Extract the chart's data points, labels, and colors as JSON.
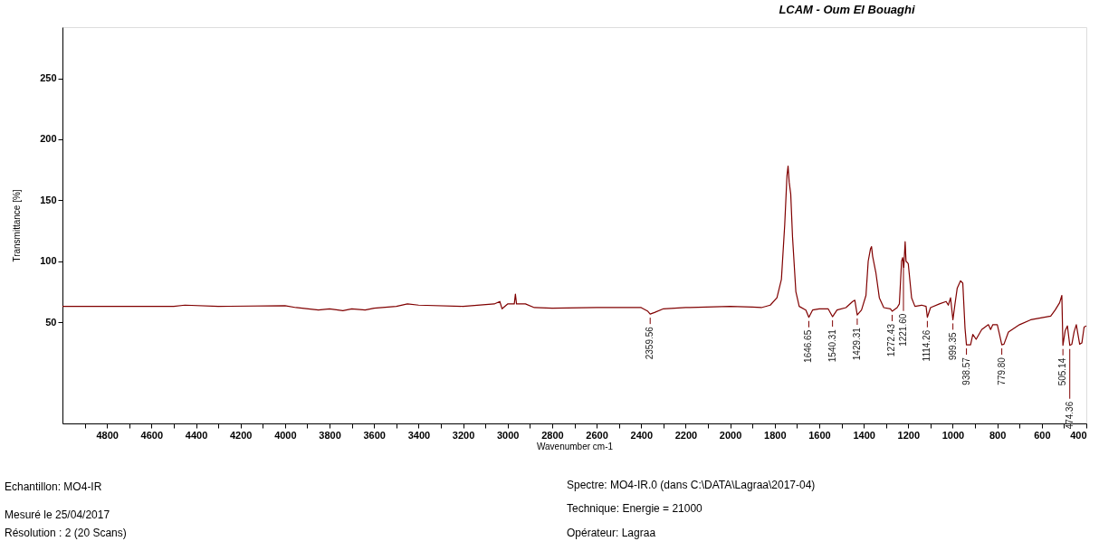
{
  "chart_data": {
    "type": "line",
    "title": "LCAM - Oum El Bouaghi",
    "xlabel": "Wavenumber cm-1",
    "ylabel": "Transmittance [%]",
    "xlim": [
      5000,
      400
    ],
    "ylim": [
      -33,
      292
    ],
    "xticks": [
      {
        "value": 4900,
        "label": null
      },
      4800,
      {
        "value": 4700,
        "label": null
      },
      4600,
      {
        "value": 4500,
        "label": null
      },
      4400,
      {
        "value": 4300,
        "label": null
      },
      4200,
      {
        "value": 4100,
        "label": null
      },
      4000,
      {
        "value": 3900,
        "label": null
      },
      3800,
      {
        "value": 3700,
        "label": null
      },
      3600,
      {
        "value": 3500,
        "label": null
      },
      3400,
      {
        "value": 3300,
        "label": null
      },
      3200,
      {
        "value": 3100,
        "label": null
      },
      3000,
      {
        "value": 2900,
        "label": null
      },
      2800,
      {
        "value": 2700,
        "label": null
      },
      2600,
      {
        "value": 2500,
        "label": null
      },
      2400,
      {
        "value": 2300,
        "label": null
      },
      2200,
      {
        "value": 2100,
        "label": null
      },
      2000,
      {
        "value": 1900,
        "label": null
      },
      1800,
      {
        "value": 1700,
        "label": null
      },
      1600,
      {
        "value": 1500,
        "label": null
      },
      1400,
      {
        "value": 1300,
        "label": null
      },
      1200,
      {
        "value": 1100,
        "label": null
      },
      1000,
      {
        "value": 900,
        "label": null
      },
      800,
      {
        "value": 700,
        "label": null
      },
      600,
      {
        "value": 500,
        "label": null
      },
      400
    ],
    "yticks": [
      50,
      100,
      150,
      200,
      250
    ],
    "grid": false,
    "marker": "none",
    "line_style": "solid",
    "x": [
      5000,
      4500,
      4450,
      4300,
      4000,
      3950,
      3850,
      3800,
      3740,
      3700,
      3640,
      3600,
      3500,
      3450,
      3400,
      3200,
      3060,
      3035,
      3025,
      3000,
      2970,
      2965,
      2960,
      2920,
      2880,
      2800,
      2600,
      2400,
      2370,
      2359.56,
      2340,
      2300,
      2200,
      2000,
      1900,
      1860,
      1820,
      1790,
      1770,
      1755,
      1745,
      1740,
      1735,
      1728,
      1720,
      1705,
      1690,
      1660,
      1646.65,
      1630,
      1600,
      1560,
      1540.31,
      1520,
      1480,
      1450,
      1440,
      1429.31,
      1410,
      1390,
      1380,
      1370,
      1365,
      1360,
      1345,
      1330,
      1310,
      1280,
      1272.43,
      1250,
      1240,
      1230,
      1225,
      1220,
      1214,
      1210,
      1200,
      1185,
      1170,
      1140,
      1120,
      1114.26,
      1100,
      1060,
      1030,
      1020,
      1010,
      999.35,
      990,
      980,
      965,
      955,
      945,
      938.57,
      920,
      910,
      895,
      870,
      840,
      830,
      820,
      800,
      790,
      779.8,
      770,
      750,
      700,
      650,
      560,
      540,
      520,
      510,
      505.14,
      495,
      485,
      474.36,
      465,
      455,
      445,
      430,
      420,
      410,
      400
    ],
    "series": [
      {
        "color": "#800000",
        "values": [
          63,
          63,
          64,
          63,
          63.5,
          62,
          60,
          61,
          59.5,
          61,
          60,
          61.5,
          63,
          65,
          64,
          63,
          65,
          67,
          61,
          65,
          65,
          73,
          65,
          65,
          62,
          61.5,
          62,
          62,
          59,
          56.7,
          58,
          61,
          62,
          63,
          62.5,
          62,
          64,
          70,
          85,
          130,
          170,
          178,
          165,
          155,
          120,
          75,
          63,
          60,
          54,
          60,
          61,
          61,
          54.5,
          60,
          62,
          67,
          68,
          56,
          60,
          72,
          100,
          110,
          112,
          104,
          90,
          70,
          62,
          61,
          59,
          62,
          65,
          100,
          103,
          95,
          116,
          100,
          98,
          70,
          63,
          64,
          63,
          54,
          62,
          65,
          67,
          64,
          70,
          52,
          65,
          78,
          84,
          82,
          45,
          31.5,
          31.5,
          40,
          36,
          44,
          48,
          44,
          48,
          48,
          40,
          31.5,
          32,
          42,
          48,
          52,
          55,
          60,
          66,
          72,
          31,
          43,
          47,
          31,
          32,
          42,
          48,
          32,
          33,
          46,
          47
        ]
      }
    ],
    "annotations": [
      {
        "text": "2359.56",
        "x": 2359.56,
        "y": 56.7
      },
      {
        "text": "1646.65",
        "x": 1646.65,
        "y": 54
      },
      {
        "text": "1540.31",
        "x": 1540.31,
        "y": 54.5
      },
      {
        "text": "1429.31",
        "x": 1429.31,
        "y": 56
      },
      {
        "text": "1272.43",
        "x": 1272.43,
        "y": 59
      },
      {
        "text": "1221.60",
        "x": 1221.6,
        "y": 103
      },
      {
        "text": "1114.26",
        "x": 1114.26,
        "y": 54
      },
      {
        "text": "999.35",
        "x": 999.35,
        "y": 52
      },
      {
        "text": "938.57",
        "x": 938.57,
        "y": 31.5
      },
      {
        "text": "779.80",
        "x": 779.8,
        "y": 31.5
      },
      {
        "text": "505.14",
        "x": 505.14,
        "y": 31
      },
      {
        "text": "474.36",
        "x": 474.36,
        "y": 31
      },
      "Echantillon:   MO4-IR",
      "Mesuré le 25/04/2017",
      "Résolution : 2  (20 Scans)",
      "Spectre: MO4-IR.0  (dans C:\\DATA\\Lagraa\\2017-04)",
      "Technique: Energie = 21000",
      "Opérateur: Lagraa"
    ]
  }
}
